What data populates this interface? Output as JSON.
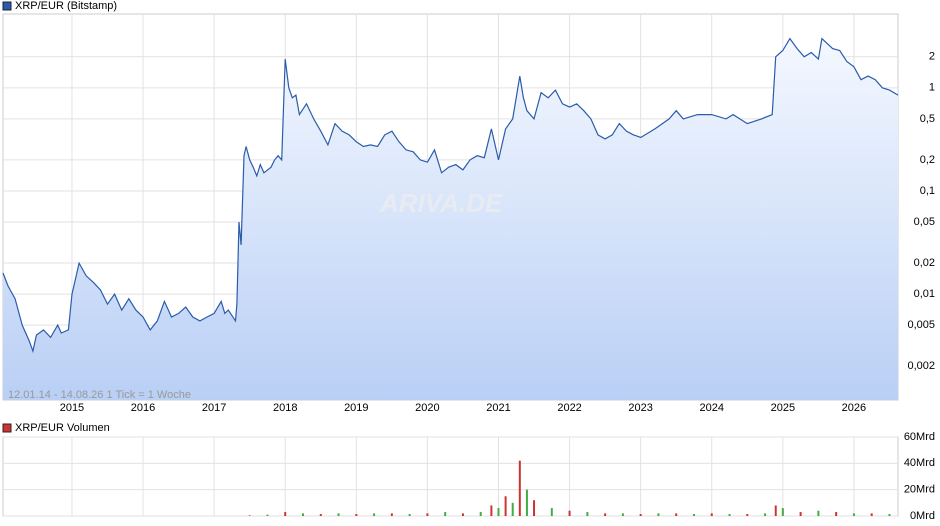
{
  "chart_data": [
    {
      "type": "line",
      "title": "XRP/EUR (Bitstamp)",
      "subtitle": "12.01.14 - 14.08.26   1 Tick = 1 Woche",
      "watermark": "ARIVA.DE",
      "log_scale": true,
      "grid": true,
      "color": "#2a5caa",
      "x": [
        2014.03,
        2014.1,
        2014.2,
        2014.3,
        2014.4,
        2014.45,
        2014.5,
        2014.6,
        2014.7,
        2014.8,
        2014.85,
        2014.95,
        2015.0,
        2015.1,
        2015.2,
        2015.3,
        2015.4,
        2015.5,
        2015.6,
        2015.7,
        2015.8,
        2015.9,
        2016.0,
        2016.1,
        2016.2,
        2016.3,
        2016.4,
        2016.5,
        2016.6,
        2016.7,
        2016.8,
        2016.9,
        2017.0,
        2017.1,
        2017.15,
        2017.2,
        2017.3,
        2017.32,
        2017.35,
        2017.38,
        2017.42,
        2017.45,
        2017.5,
        2017.55,
        2017.6,
        2017.65,
        2017.7,
        2017.8,
        2017.85,
        2017.9,
        2017.95,
        2018.0,
        2018.05,
        2018.1,
        2018.15,
        2018.2,
        2018.3,
        2018.4,
        2018.5,
        2018.6,
        2018.7,
        2018.8,
        2018.9,
        2019.0,
        2019.1,
        2019.2,
        2019.3,
        2019.4,
        2019.5,
        2019.6,
        2019.7,
        2019.8,
        2019.9,
        2020.0,
        2020.1,
        2020.2,
        2020.3,
        2020.4,
        2020.5,
        2020.6,
        2020.7,
        2020.8,
        2020.9,
        2021.0,
        2021.1,
        2021.2,
        2021.3,
        2021.35,
        2021.4,
        2021.5,
        2021.6,
        2021.7,
        2021.8,
        2021.9,
        2022.0,
        2022.1,
        2022.2,
        2022.3,
        2022.4,
        2022.5,
        2022.6,
        2022.7,
        2022.8,
        2022.9,
        2023.0,
        2023.2,
        2023.4,
        2023.5,
        2023.6,
        2023.8,
        2024.0,
        2024.2,
        2024.3,
        2024.5,
        2024.7,
        2024.85,
        2024.9,
        2025.0,
        2025.1,
        2025.2,
        2025.3,
        2025.4,
        2025.5,
        2025.55,
        2025.7,
        2025.8,
        2025.9,
        2026.0,
        2026.1,
        2026.2,
        2026.3,
        2026.4,
        2026.5,
        2026.62
      ],
      "values": [
        0.016,
        0.012,
        0.009,
        0.005,
        0.0035,
        0.0028,
        0.004,
        0.0045,
        0.0038,
        0.005,
        0.0042,
        0.0045,
        0.01,
        0.02,
        0.015,
        0.013,
        0.011,
        0.008,
        0.01,
        0.007,
        0.009,
        0.007,
        0.006,
        0.0045,
        0.0055,
        0.0085,
        0.006,
        0.0065,
        0.0075,
        0.006,
        0.0055,
        0.006,
        0.0065,
        0.0085,
        0.0065,
        0.007,
        0.0055,
        0.008,
        0.05,
        0.03,
        0.22,
        0.27,
        0.2,
        0.17,
        0.14,
        0.18,
        0.15,
        0.17,
        0.2,
        0.22,
        0.2,
        1.9,
        1.0,
        0.8,
        0.85,
        0.55,
        0.7,
        0.5,
        0.38,
        0.28,
        0.45,
        0.38,
        0.35,
        0.3,
        0.27,
        0.28,
        0.27,
        0.35,
        0.38,
        0.3,
        0.25,
        0.24,
        0.2,
        0.19,
        0.25,
        0.15,
        0.17,
        0.18,
        0.16,
        0.2,
        0.22,
        0.21,
        0.4,
        0.2,
        0.4,
        0.5,
        1.3,
        0.8,
        0.6,
        0.5,
        0.9,
        0.8,
        0.95,
        0.7,
        0.65,
        0.7,
        0.6,
        0.5,
        0.35,
        0.32,
        0.35,
        0.45,
        0.38,
        0.35,
        0.33,
        0.4,
        0.5,
        0.6,
        0.5,
        0.55,
        0.55,
        0.5,
        0.55,
        0.45,
        0.5,
        0.55,
        2.0,
        2.3,
        3.0,
        2.4,
        2.0,
        2.2,
        1.9,
        3.0,
        2.4,
        2.3,
        1.8,
        1.6,
        1.2,
        1.3,
        1.2,
        1.0,
        0.95,
        0.85
      ],
      "xlim": [
        2014.03,
        2026.62
      ],
      "xticks": [
        2015,
        2016,
        2017,
        2018,
        2019,
        2020,
        2021,
        2022,
        2023,
        2024,
        2025,
        2026
      ],
      "ylim": [
        0.00094,
        5.2
      ],
      "yticks": [
        {
          "value": 0.002,
          "label": "0,002"
        },
        {
          "value": 0.005,
          "label": "0,005"
        },
        {
          "value": 0.01,
          "label": "0,01"
        },
        {
          "value": 0.02,
          "label": "0,02"
        },
        {
          "value": 0.05,
          "label": "0,05"
        },
        {
          "value": 0.1,
          "label": "0,1"
        },
        {
          "value": 0.2,
          "label": "0,2"
        },
        {
          "value": 0.5,
          "label": "0,5"
        },
        1,
        2
      ]
    },
    {
      "type": "bar",
      "title": "XRP/EUR Volumen",
      "grid": true,
      "colors": [
        "#cc3333",
        "#44aa44"
      ],
      "x": [
        2017.5,
        2017.75,
        2018.0,
        2018.25,
        2018.5,
        2018.75,
        2019.0,
        2019.25,
        2019.5,
        2019.75,
        2020.0,
        2020.25,
        2020.5,
        2020.75,
        2020.9,
        2021.0,
        2021.1,
        2021.2,
        2021.3,
        2021.4,
        2021.5,
        2021.75,
        2022.0,
        2022.25,
        2022.5,
        2022.75,
        2023.0,
        2023.25,
        2023.5,
        2023.75,
        2024.0,
        2024.25,
        2024.5,
        2024.75,
        2024.9,
        2025.0,
        2025.25,
        2025.5,
        2025.75,
        2026.0,
        2026.25,
        2026.5
      ],
      "values": [
        0.5,
        1,
        3,
        2,
        1.5,
        2,
        1.5,
        2,
        2,
        1.5,
        2,
        3,
        2,
        3,
        8,
        6,
        15,
        10,
        42,
        20,
        12,
        6,
        4,
        3,
        2,
        2,
        1.5,
        2,
        2,
        1.5,
        2,
        1.5,
        1.5,
        2,
        8,
        6,
        3,
        4,
        3,
        2,
        2,
        1.5
      ],
      "xlim": [
        2014.03,
        2026.62
      ],
      "xticks": [
        2015,
        2016,
        2017,
        2018,
        2019,
        2020,
        2021,
        2022,
        2023,
        2024,
        2025,
        2026
      ],
      "ylim": [
        0,
        60
      ],
      "yticks": [
        {
          "value": 0,
          "label": "0Mrd"
        },
        {
          "value": 20,
          "label": "20Mrd"
        },
        {
          "value": 40,
          "label": "40Mrd"
        },
        {
          "value": 60,
          "label": "60Mrd"
        }
      ]
    }
  ]
}
